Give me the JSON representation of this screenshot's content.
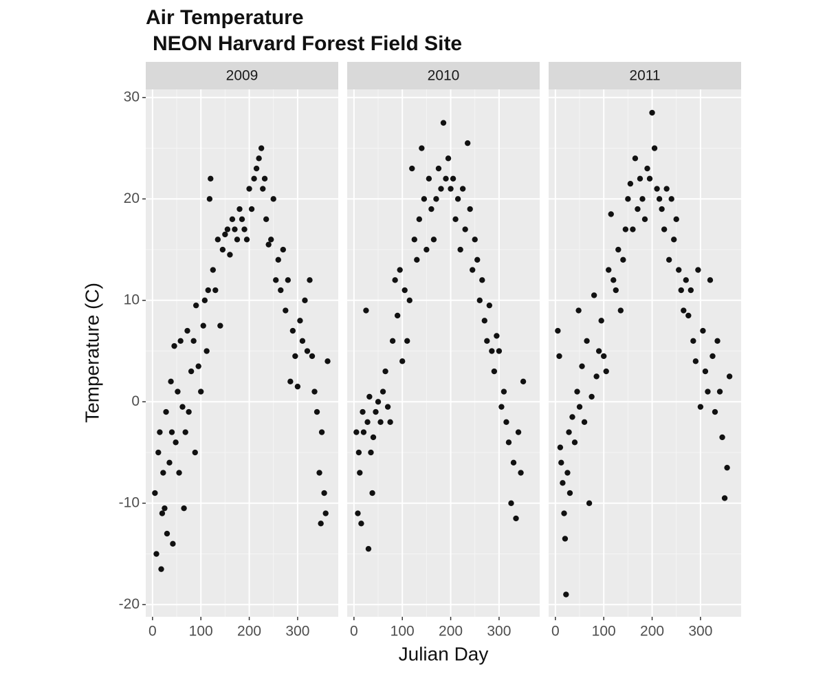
{
  "chart_data": {
    "type": "scatter",
    "title": "Air Temperature",
    "subtitle": "NEON Harvard Forest Field Site",
    "x_label": "Julian Day",
    "y_label": "Temperature (C)",
    "color": "#111111",
    "grid": true,
    "xlim": [
      -14,
      384
    ],
    "ylim": [
      -21.2,
      30.8
    ],
    "xticks": [
      0,
      100,
      200,
      300
    ],
    "yticks": [
      -20,
      -10,
      0,
      10,
      20,
      30
    ],
    "facets": [
      {
        "label": "2009",
        "x": [
          5,
          8,
          12,
          15,
          18,
          20,
          22,
          25,
          28,
          30,
          35,
          38,
          40,
          42,
          45,
          48,
          52,
          55,
          58,
          62,
          65,
          68,
          72,
          75,
          80,
          85,
          88,
          90,
          95,
          100,
          105,
          108,
          112,
          115,
          118,
          120,
          125,
          130,
          135,
          140,
          145,
          150,
          155,
          160,
          165,
          170,
          175,
          180,
          185,
          190,
          195,
          200,
          205,
          210,
          215,
          220,
          225,
          228,
          232,
          235,
          240,
          245,
          250,
          255,
          260,
          265,
          270,
          275,
          280,
          285,
          290,
          295,
          300,
          305,
          310,
          315,
          320,
          325,
          330,
          335,
          340,
          345,
          348,
          350,
          355,
          358,
          362
        ],
        "y": [
          -9,
          -15,
          -5,
          -3,
          -16.5,
          -11,
          -7,
          -10.5,
          -1,
          -13,
          -6,
          2,
          -3,
          -14,
          5.5,
          -4,
          1,
          -7,
          6,
          -0.5,
          -10.5,
          -3,
          7,
          -1,
          3,
          6,
          -5,
          9.5,
          3.5,
          1,
          7.5,
          10,
          5,
          11,
          20,
          22,
          13,
          11,
          16,
          7.5,
          15,
          16.5,
          17,
          14.5,
          18,
          17,
          16,
          19,
          18,
          17,
          16,
          21,
          19,
          22,
          23,
          24,
          25,
          21,
          22,
          18,
          15.5,
          16,
          20,
          12,
          14,
          11,
          15,
          9,
          12,
          2,
          7,
          4.5,
          1.5,
          8,
          6,
          10,
          5,
          12,
          4.5,
          1,
          -1,
          -7,
          -12,
          -3,
          -9,
          -11,
          4
        ]
      },
      {
        "label": "2010",
        "x": [
          5,
          8,
          10,
          12,
          15,
          18,
          20,
          25,
          28,
          30,
          32,
          35,
          38,
          40,
          45,
          50,
          55,
          60,
          65,
          70,
          75,
          80,
          85,
          90,
          95,
          100,
          105,
          110,
          115,
          120,
          125,
          130,
          135,
          140,
          145,
          150,
          155,
          160,
          165,
          170,
          175,
          180,
          185,
          190,
          195,
          200,
          205,
          210,
          215,
          220,
          225,
          230,
          235,
          240,
          245,
          250,
          255,
          260,
          265,
          270,
          275,
          280,
          285,
          290,
          295,
          300,
          305,
          310,
          315,
          320,
          325,
          330,
          335,
          340,
          345,
          350
        ],
        "y": [
          -3,
          -11,
          -5,
          -7,
          -12,
          -1,
          -3,
          9,
          -2,
          -14.5,
          0.5,
          -5,
          -9,
          -3.5,
          -1,
          0,
          -2,
          1,
          3,
          -0.5,
          -2,
          6,
          12,
          8.5,
          13,
          4,
          11,
          6,
          10,
          23,
          16,
          14,
          18,
          25,
          20,
          15,
          22,
          19,
          16,
          20,
          23,
          21,
          27.5,
          22,
          24,
          21,
          22,
          18,
          20,
          15,
          21,
          17,
          25.5,
          19,
          13,
          16,
          14,
          10,
          12,
          8,
          6,
          9.5,
          5,
          3,
          6.5,
          5,
          -0.5,
          1,
          -2,
          -4,
          -10,
          -6,
          -11.5,
          -3,
          -7,
          2
        ]
      },
      {
        "label": "2011",
        "x": [
          5,
          8,
          10,
          12,
          15,
          18,
          20,
          22,
          25,
          28,
          30,
          35,
          40,
          45,
          48,
          50,
          55,
          60,
          65,
          70,
          75,
          80,
          85,
          90,
          95,
          100,
          105,
          110,
          115,
          120,
          125,
          130,
          135,
          140,
          145,
          150,
          155,
          160,
          165,
          170,
          175,
          180,
          185,
          190,
          195,
          200,
          205,
          210,
          215,
          220,
          225,
          230,
          235,
          240,
          245,
          250,
          255,
          260,
          265,
          270,
          275,
          280,
          285,
          290,
          295,
          300,
          305,
          310,
          315,
          320,
          325,
          330,
          335,
          340,
          345,
          350,
          355,
          360
        ],
        "y": [
          7,
          4.5,
          -4.5,
          -6,
          -8,
          -11,
          -13.5,
          -19,
          -7,
          -3,
          -9,
          -1.5,
          -4,
          1,
          9,
          -0.5,
          3.5,
          -2,
          6,
          -10,
          0.5,
          10.5,
          2.5,
          5,
          8,
          4.5,
          3,
          13,
          18.5,
          12,
          11,
          15,
          9,
          14,
          17,
          20,
          21.5,
          17,
          24,
          19,
          22,
          20,
          18,
          23,
          22,
          28.5,
          25,
          21,
          20,
          19,
          17,
          21,
          14,
          20,
          16,
          18,
          13,
          11,
          9,
          12,
          8.5,
          11,
          6,
          4,
          13,
          -0.5,
          7,
          3,
          1,
          12,
          4.5,
          -1,
          6,
          1,
          -3.5,
          -9.5,
          -6.5,
          2.5
        ]
      }
    ]
  }
}
